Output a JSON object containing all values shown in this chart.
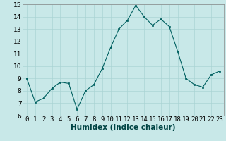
{
  "x": [
    0,
    1,
    2,
    3,
    4,
    5,
    6,
    7,
    8,
    9,
    10,
    11,
    12,
    13,
    14,
    15,
    16,
    17,
    18,
    19,
    20,
    21,
    22,
    23
  ],
  "y": [
    9.0,
    7.1,
    7.4,
    8.2,
    8.7,
    8.6,
    6.5,
    8.0,
    8.5,
    9.8,
    11.5,
    13.0,
    13.7,
    14.9,
    14.0,
    13.3,
    13.8,
    13.2,
    11.2,
    9.0,
    8.5,
    8.3,
    9.3,
    9.6
  ],
  "xlabel": "Humidex (Indice chaleur)",
  "ylim": [
    6,
    15
  ],
  "yticks": [
    6,
    7,
    8,
    9,
    10,
    11,
    12,
    13,
    14,
    15
  ],
  "xticks": [
    0,
    1,
    2,
    3,
    4,
    5,
    6,
    7,
    8,
    9,
    10,
    11,
    12,
    13,
    14,
    15,
    16,
    17,
    18,
    19,
    20,
    21,
    22,
    23
  ],
  "line_color": "#006060",
  "marker_color": "#006060",
  "bg_color": "#c8e8e8",
  "grid_color": "#aad4d4",
  "axis_fontsize": 6.5,
  "label_fontsize": 7.5
}
